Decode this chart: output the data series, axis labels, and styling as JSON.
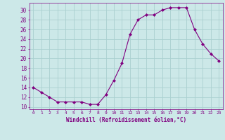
{
  "x": [
    0,
    1,
    2,
    3,
    4,
    5,
    6,
    7,
    8,
    9,
    10,
    11,
    12,
    13,
    14,
    15,
    16,
    17,
    18,
    19,
    20,
    21,
    22,
    23
  ],
  "y": [
    14,
    13,
    12,
    11,
    11,
    11,
    11,
    10.5,
    10.5,
    12.5,
    15.5,
    19,
    25,
    28,
    29,
    29,
    30,
    30.5,
    30.5,
    30.5,
    26,
    23,
    21,
    19.5
  ],
  "xlabel": "Windchill (Refroidissement éolien,°C)",
  "yticks": [
    10,
    12,
    14,
    16,
    18,
    20,
    22,
    24,
    26,
    28,
    30
  ],
  "xticks": [
    0,
    1,
    2,
    3,
    4,
    5,
    6,
    7,
    8,
    9,
    10,
    11,
    12,
    13,
    14,
    15,
    16,
    17,
    18,
    19,
    20,
    21,
    22,
    23
  ],
  "xlim": [
    -0.5,
    23.5
  ],
  "ylim": [
    9.5,
    31.5
  ],
  "line_color": "#800080",
  "marker_color": "#800080",
  "bg_color": "#cce8e8",
  "grid_color": "#aad0d0",
  "label_color": "#800080",
  "tick_color": "#800080"
}
